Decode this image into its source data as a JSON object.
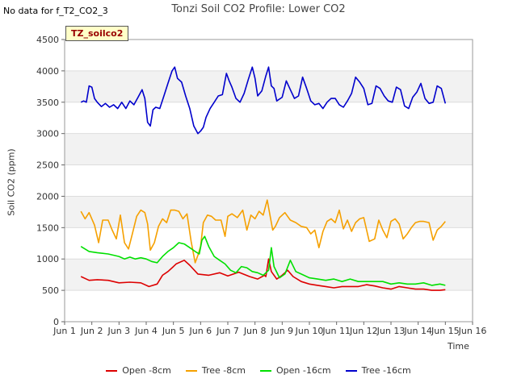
{
  "nodata_text": "No data for f_T2_CO2_3",
  "tag_label": "TZ_soilco2",
  "chart_data": {
    "type": "line",
    "title": "Tonzi Soil CO2 Profile: Lower CO2",
    "xlabel": "Time",
    "ylabel": "Soil CO2 (ppm)",
    "ylim": [
      0,
      4500
    ],
    "yticks": [
      0,
      500,
      1000,
      1500,
      2000,
      2500,
      3000,
      3500,
      4000,
      4500
    ],
    "xlim": [
      1,
      16
    ],
    "xticks": [
      1,
      2,
      3,
      4,
      5,
      6,
      7,
      8,
      9,
      10,
      11,
      12,
      13,
      14,
      15,
      16
    ],
    "xtick_labels": [
      "Jun 1",
      "Jun 2",
      "Jun 3",
      "Jun 4",
      "Jun 5",
      "Jun 6",
      "Jun 7",
      "Jun 8",
      "Jun 9",
      "Jun 10",
      "Jun 11",
      "Jun 12",
      "Jun 13",
      "Jun 14",
      "Jun 15",
      "Jun 16"
    ],
    "grid": "horizontal bands",
    "legend_position": "bottom",
    "series": [
      {
        "name": "Open -8cm",
        "color": "#dd0000",
        "x": [
          1.6,
          1.9,
          2.2,
          2.6,
          3.0,
          3.4,
          3.8,
          4.1,
          4.4,
          4.6,
          4.8,
          5.0,
          5.1,
          5.4,
          5.6,
          5.9,
          6.3,
          6.7,
          7.0,
          7.4,
          7.8,
          8.1,
          8.35,
          8.4,
          8.5,
          8.6,
          8.8,
          9.0,
          9.2,
          9.4,
          9.7,
          10.0,
          10.3,
          10.6,
          10.9,
          11.2,
          11.5,
          11.8,
          12.1,
          12.4,
          12.7,
          13.0,
          13.3,
          13.6,
          13.9,
          14.2,
          14.5,
          14.8,
          15.0
        ],
        "values": [
          720,
          660,
          670,
          660,
          620,
          630,
          620,
          560,
          600,
          740,
          800,
          880,
          920,
          980,
          900,
          760,
          740,
          780,
          730,
          790,
          720,
          680,
          740,
          720,
          1000,
          800,
          680,
          740,
          820,
          720,
          640,
          600,
          580,
          560,
          540,
          560,
          560,
          560,
          590,
          570,
          540,
          520,
          560,
          540,
          520,
          520,
          500,
          500,
          510
        ]
      },
      {
        "name": "Tree -8cm",
        "color": "#f5a000",
        "x": [
          1.6,
          1.75,
          1.9,
          2.1,
          2.25,
          2.4,
          2.6,
          2.75,
          2.9,
          3.05,
          3.2,
          3.35,
          3.5,
          3.65,
          3.8,
          3.95,
          4.05,
          4.15,
          4.3,
          4.45,
          4.6,
          4.75,
          4.9,
          5.05,
          5.2,
          5.35,
          5.5,
          5.65,
          5.8,
          5.9,
          6.0,
          6.1,
          6.25,
          6.4,
          6.55,
          6.75,
          6.9,
          7.0,
          7.15,
          7.35,
          7.55,
          7.7,
          7.85,
          8.0,
          8.15,
          8.3,
          8.45,
          8.55,
          8.65,
          8.75,
          8.9,
          9.1,
          9.3,
          9.5,
          9.7,
          9.9,
          10.05,
          10.2,
          10.35,
          10.5,
          10.65,
          10.8,
          10.95,
          11.1,
          11.25,
          11.4,
          11.55,
          11.7,
          11.85,
          12.0,
          12.2,
          12.4,
          12.55,
          12.7,
          12.85,
          13.0,
          13.15,
          13.3,
          13.45,
          13.6,
          13.75,
          13.9,
          14.05,
          14.2,
          14.4,
          14.55,
          14.7,
          14.85,
          15.0
        ],
        "values": [
          1760,
          1640,
          1740,
          1540,
          1260,
          1620,
          1620,
          1460,
          1320,
          1700,
          1260,
          1160,
          1420,
          1680,
          1780,
          1740,
          1560,
          1140,
          1260,
          1520,
          1640,
          1580,
          1780,
          1780,
          1760,
          1640,
          1720,
          1280,
          940,
          1060,
          1200,
          1580,
          1700,
          1680,
          1620,
          1620,
          1360,
          1680,
          1720,
          1660,
          1780,
          1460,
          1700,
          1640,
          1760,
          1700,
          1940,
          1700,
          1460,
          1520,
          1660,
          1740,
          1620,
          1580,
          1520,
          1500,
          1400,
          1460,
          1180,
          1440,
          1600,
          1640,
          1580,
          1780,
          1480,
          1620,
          1440,
          1580,
          1640,
          1660,
          1280,
          1320,
          1620,
          1460,
          1340,
          1600,
          1640,
          1560,
          1320,
          1400,
          1500,
          1580,
          1600,
          1600,
          1580,
          1300,
          1460,
          1520,
          1600
        ]
      },
      {
        "name": "Open -16cm",
        "color": "#00e000",
        "x": [
          1.6,
          1.9,
          2.2,
          2.6,
          3.0,
          3.2,
          3.4,
          3.6,
          3.8,
          4.0,
          4.2,
          4.4,
          4.6,
          4.8,
          5.0,
          5.2,
          5.4,
          5.6,
          5.8,
          5.95,
          6.05,
          6.15,
          6.3,
          6.5,
          6.7,
          6.9,
          7.1,
          7.3,
          7.5,
          7.7,
          7.9,
          8.1,
          8.3,
          8.5,
          8.6,
          8.7,
          8.9,
          9.1,
          9.3,
          9.5,
          9.7,
          10.0,
          10.3,
          10.6,
          10.9,
          11.2,
          11.5,
          11.8,
          12.1,
          12.4,
          12.7,
          13.0,
          13.3,
          13.6,
          13.9,
          14.2,
          14.5,
          14.8,
          15.0
        ],
        "values": [
          1200,
          1120,
          1100,
          1080,
          1040,
          1000,
          1030,
          1000,
          1020,
          1000,
          960,
          940,
          1040,
          1120,
          1180,
          1260,
          1240,
          1180,
          1120,
          1080,
          1300,
          1360,
          1200,
          1040,
          980,
          920,
          820,
          780,
          880,
          860,
          800,
          780,
          740,
          820,
          1180,
          880,
          700,
          760,
          980,
          800,
          760,
          700,
          680,
          660,
          680,
          640,
          680,
          640,
          640,
          640,
          640,
          600,
          620,
          600,
          600,
          620,
          580,
          600,
          580
        ]
      },
      {
        "name": "Tree -16cm",
        "color": "#0000cc",
        "x": [
          1.6,
          1.7,
          1.8,
          1.9,
          2.0,
          2.1,
          2.2,
          2.35,
          2.5,
          2.65,
          2.8,
          2.95,
          3.1,
          3.25,
          3.4,
          3.55,
          3.7,
          3.85,
          3.95,
          4.05,
          4.15,
          4.25,
          4.35,
          4.5,
          4.65,
          4.8,
          4.95,
          5.05,
          5.15,
          5.3,
          5.45,
          5.6,
          5.75,
          5.9,
          6.0,
          6.1,
          6.2,
          6.35,
          6.5,
          6.65,
          6.8,
          6.95,
          7.05,
          7.15,
          7.3,
          7.45,
          7.6,
          7.75,
          7.9,
          8.0,
          8.1,
          8.25,
          8.4,
          8.5,
          8.6,
          8.7,
          8.8,
          9.0,
          9.15,
          9.3,
          9.45,
          9.6,
          9.75,
          9.9,
          10.05,
          10.2,
          10.35,
          10.5,
          10.65,
          10.8,
          10.95,
          11.1,
          11.25,
          11.4,
          11.55,
          11.7,
          11.85,
          12.0,
          12.15,
          12.3,
          12.45,
          12.6,
          12.75,
          12.9,
          13.05,
          13.2,
          13.35,
          13.5,
          13.65,
          13.8,
          13.95,
          14.1,
          14.25,
          14.4,
          14.55,
          14.7,
          14.85,
          15.0
        ],
        "values": [
          3500,
          3520,
          3500,
          3760,
          3740,
          3560,
          3500,
          3430,
          3480,
          3420,
          3460,
          3400,
          3500,
          3400,
          3520,
          3460,
          3580,
          3700,
          3560,
          3180,
          3120,
          3380,
          3420,
          3400,
          3600,
          3800,
          4000,
          4060,
          3880,
          3820,
          3600,
          3400,
          3120,
          3000,
          3040,
          3100,
          3260,
          3400,
          3500,
          3600,
          3620,
          3960,
          3840,
          3740,
          3560,
          3500,
          3640,
          3860,
          4060,
          3880,
          3600,
          3680,
          3920,
          4060,
          3760,
          3720,
          3520,
          3580,
          3840,
          3700,
          3560,
          3600,
          3900,
          3720,
          3520,
          3460,
          3480,
          3400,
          3500,
          3560,
          3560,
          3460,
          3420,
          3520,
          3640,
          3900,
          3820,
          3720,
          3460,
          3480,
          3760,
          3720,
          3600,
          3520,
          3500,
          3740,
          3700,
          3440,
          3400,
          3580,
          3660,
          3800,
          3560,
          3480,
          3500,
          3760,
          3720,
          3480
        ]
      }
    ]
  }
}
